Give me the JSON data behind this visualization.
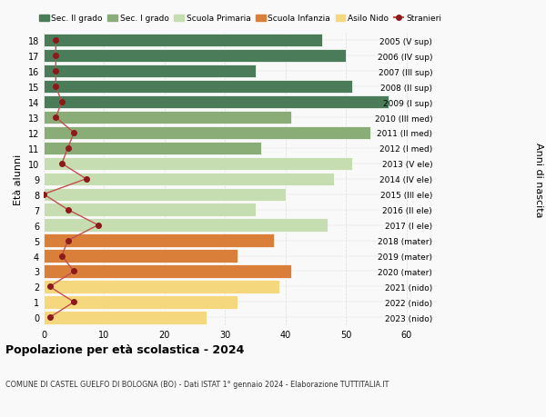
{
  "ages": [
    18,
    17,
    16,
    15,
    14,
    13,
    12,
    11,
    10,
    9,
    8,
    7,
    6,
    5,
    4,
    3,
    2,
    1,
    0
  ],
  "years": [
    "2005 (V sup)",
    "2006 (IV sup)",
    "2007 (III sup)",
    "2008 (II sup)",
    "2009 (I sup)",
    "2010 (III med)",
    "2011 (II med)",
    "2012 (I med)",
    "2013 (V ele)",
    "2014 (IV ele)",
    "2015 (III ele)",
    "2016 (II ele)",
    "2017 (I ele)",
    "2018 (mater)",
    "2019 (mater)",
    "2020 (mater)",
    "2021 (nido)",
    "2022 (nido)",
    "2023 (nido)"
  ],
  "bar_values": [
    46,
    50,
    35,
    51,
    57,
    41,
    54,
    36,
    51,
    48,
    40,
    35,
    47,
    38,
    32,
    41,
    39,
    32,
    27
  ],
  "stranieri": [
    2,
    2,
    2,
    2,
    3,
    2,
    5,
    4,
    3,
    7,
    0,
    4,
    9,
    4,
    3,
    5,
    1,
    5,
    1
  ],
  "bar_colors": {
    "sec2": "#4a7c59",
    "sec1": "#8aad77",
    "primaria": "#c5ddb0",
    "infanzia": "#d97f3a",
    "nido": "#f5d77e"
  },
  "title": "Popolazione per età scolastica - 2024",
  "subtitle": "COMUNE DI CASTEL GUELFO DI BOLOGNA (BO) - Dati ISTAT 1° gennaio 2024 - Elaborazione TUTTITALIA.IT",
  "ylabel_left": "Età alunni",
  "ylabel_right": "Anni di nascita",
  "legend_labels": [
    "Sec. II grado",
    "Sec. I grado",
    "Scuola Primaria",
    "Scuola Infanzia",
    "Asilo Nido",
    "Stranieri"
  ],
  "bg_color": "#f9f9f9",
  "grid_color": "#dddddd",
  "stranieri_color": "#8b1a1a",
  "stranieri_line_color": "#c0504d"
}
